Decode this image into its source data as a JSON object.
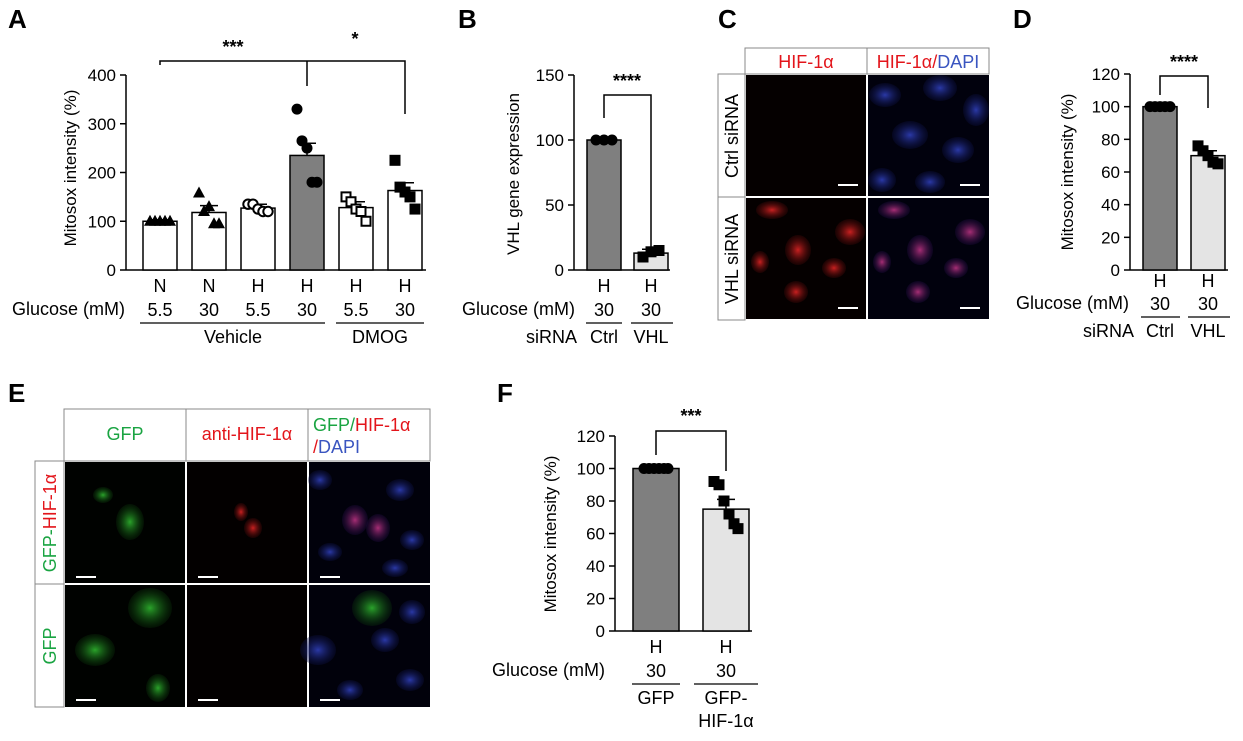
{
  "colors": {
    "white_bar": "#ffffff",
    "dark_bar": "#7f7f7f",
    "light_bar": "#e4e4e4",
    "red_label": "#e3151b",
    "green_label": "#1aa442",
    "blue_label": "#3a55c0"
  },
  "panels": {
    "A": {
      "letter": "A",
      "ylabel": "Mitosox intensity (%)",
      "glucose_label": "Glucose (mM)",
      "row1": [
        "N",
        "N",
        "H",
        "H",
        "H",
        "H"
      ],
      "row2": [
        "5.5",
        "30",
        "5.5",
        "30",
        "5.5",
        "30"
      ],
      "group1": "Vehicle",
      "group2": "DMOG",
      "sig1": "***",
      "sig2": "*"
    },
    "B": {
      "letter": "B",
      "ylabel": "VHL gene expression",
      "row_labels": [
        "Glucose (mM)",
        "siRNA"
      ],
      "row1": [
        "H",
        "H"
      ],
      "row2": [
        "30",
        "30"
      ],
      "row3": [
        "Ctrl",
        "VHL"
      ],
      "sig": "****"
    },
    "C": {
      "letter": "C",
      "col1": "HIF-1α",
      "col2_a": "HIF-1α/",
      "col2_b": "DAPI",
      "row1": "Ctrl siRNA",
      "row2": "VHL siRNA"
    },
    "D": {
      "letter": "D",
      "ylabel": "Mitosox intensity (%)",
      "row_labels": [
        "Glucose (mM)",
        "siRNA"
      ],
      "row1": [
        "H",
        "H"
      ],
      "row2": [
        "30",
        "30"
      ],
      "row3": [
        "Ctrl",
        "VHL"
      ],
      "sig": "****"
    },
    "E": {
      "letter": "E",
      "col1": "GFP",
      "col2": "anti-HIF-1α",
      "col3_a": "GFP/",
      "col3_b": "HIF-1α",
      "col3_c": "/",
      "col3_d": "DAPI",
      "row1_a": "GFP-",
      "row1_b": "HIF-1α",
      "row2": "GFP"
    },
    "F": {
      "letter": "F",
      "ylabel": "Mitosox intensity (%)",
      "glucose_label": "Glucose (mM)",
      "row1": [
        "H",
        "H"
      ],
      "row2": [
        "30",
        "30"
      ],
      "row3a": [
        "GFP",
        "GFP-"
      ],
      "row3b": "HIF-1α",
      "sig": "***"
    }
  },
  "chart_data": [
    {
      "type": "bar",
      "panel": "A",
      "categories": [
        "N 5.5",
        "N 30",
        "H 5.5",
        "H 30",
        "H 5.5 DMOG",
        "H 30 DMOG"
      ],
      "values": [
        100,
        118,
        127,
        235,
        128,
        163
      ],
      "errors": [
        3,
        14,
        8,
        25,
        12,
        16
      ],
      "points": [
        [
          100,
          100,
          100,
          100,
          100
        ],
        [
          158,
          120,
          130,
          95,
          95
        ],
        [
          135,
          135,
          125,
          120,
          120
        ],
        [
          330,
          265,
          250,
          180,
          180
        ],
        [
          150,
          140,
          125,
          120,
          100
        ],
        [
          225,
          170,
          160,
          150,
          125
        ]
      ],
      "markers": [
        "triangle",
        "triangle",
        "circle-open",
        "circle",
        "square-open",
        "square"
      ],
      "fills": [
        "white_bar",
        "white_bar",
        "white_bar",
        "dark_bar",
        "white_bar",
        "white_bar"
      ],
      "ylabel": "Mitosox intensity (%)",
      "ylim": [
        0,
        400
      ],
      "yticks": [
        0,
        100,
        200,
        300,
        400
      ]
    },
    {
      "type": "bar",
      "panel": "B",
      "categories": [
        "Ctrl",
        "VHL"
      ],
      "values": [
        100,
        13
      ],
      "errors": [
        0,
        3
      ],
      "points": [
        [
          100,
          100,
          100
        ],
        [
          10,
          14,
          15
        ]
      ],
      "markers": [
        "circle",
        "square"
      ],
      "fills": [
        "dark_bar",
        "light_bar"
      ],
      "ylabel": "VHL gene expression",
      "ylim": [
        0,
        150
      ],
      "yticks": [
        0,
        50,
        100,
        150
      ]
    },
    {
      "type": "bar",
      "panel": "D",
      "categories": [
        "Ctrl",
        "VHL"
      ],
      "values": [
        100,
        70
      ],
      "errors": [
        0,
        3
      ],
      "points": [
        [
          100,
          100,
          100,
          100,
          100
        ],
        [
          76,
          73,
          70,
          66,
          65
        ]
      ],
      "markers": [
        "circle",
        "square"
      ],
      "fills": [
        "dark_bar",
        "light_bar"
      ],
      "ylabel": "Mitosox intensity (%)",
      "ylim": [
        0,
        120
      ],
      "yticks": [
        0,
        20,
        40,
        60,
        80,
        100,
        120
      ]
    },
    {
      "type": "bar",
      "panel": "F",
      "categories": [
        "GFP",
        "GFP-HIF-1α"
      ],
      "values": [
        100,
        75
      ],
      "errors": [
        0,
        6
      ],
      "points": [
        [
          100,
          100,
          100,
          100,
          100,
          100
        ],
        [
          92,
          90,
          80,
          72,
          66,
          63
        ]
      ],
      "markers": [
        "circle",
        "square"
      ],
      "fills": [
        "dark_bar",
        "light_bar"
      ],
      "ylabel": "Mitosox intensity (%)",
      "ylim": [
        0,
        120
      ],
      "yticks": [
        0,
        20,
        40,
        60,
        80,
        100,
        120
      ]
    }
  ]
}
